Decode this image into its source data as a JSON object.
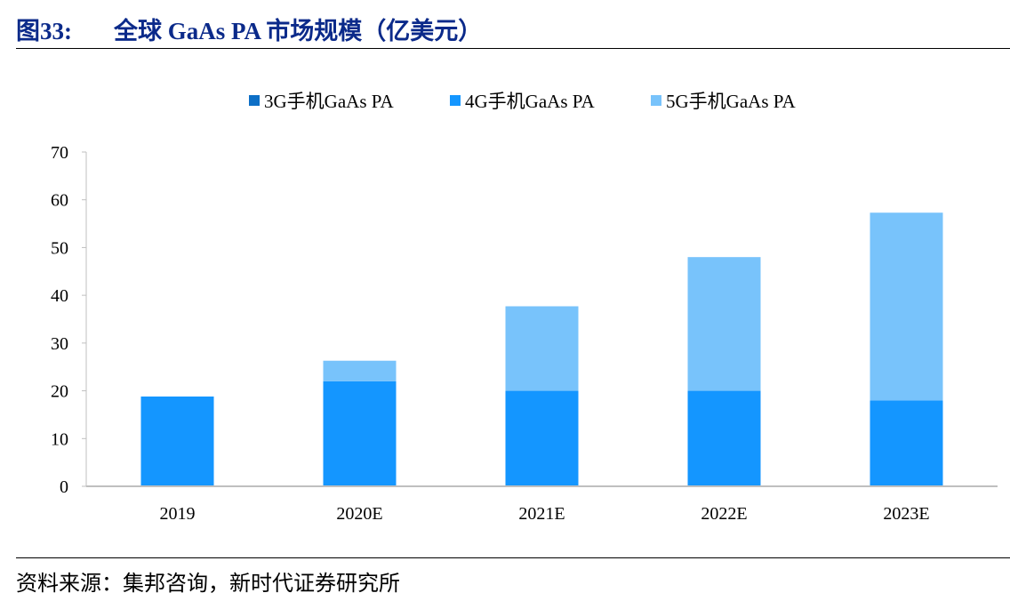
{
  "figure": {
    "number": "图33:",
    "title": "全球 GaAs PA 市场规模（亿美元）",
    "source": "资料来源：集邦咨询，新时代证券研究所"
  },
  "chart_data": {
    "type": "bar",
    "stacked": true,
    "categories": [
      "2019",
      "2020E",
      "2021E",
      "2022E",
      "2023E"
    ],
    "series": [
      {
        "name": "3G手机GaAs PA",
        "values": [
          0,
          0,
          0,
          0,
          0
        ],
        "color": "#0d6fc6"
      },
      {
        "name": "4G手机GaAs PA",
        "values": [
          18.8,
          22,
          20,
          20,
          18
        ],
        "color": "#1496ff"
      },
      {
        "name": "5G手机GaAs PA",
        "values": [
          0,
          4.3,
          17.7,
          28,
          39.3
        ],
        "color": "#78c3fb"
      }
    ],
    "ylim": [
      0,
      70
    ],
    "yticks": [
      0,
      10,
      20,
      30,
      40,
      50,
      60,
      70
    ],
    "xlabel": "",
    "ylabel": "",
    "grid": false,
    "legend": "top-center"
  }
}
